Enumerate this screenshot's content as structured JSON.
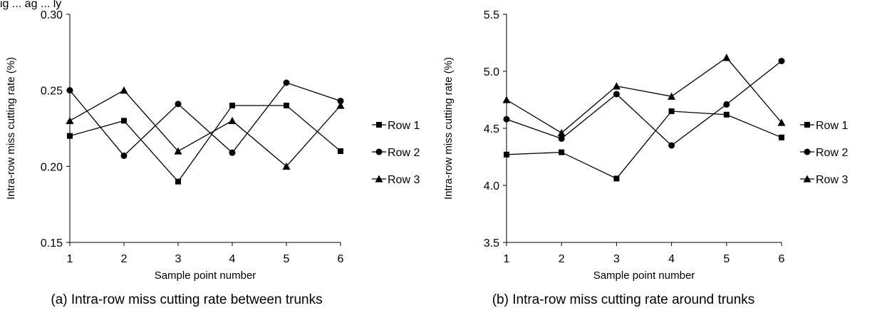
{
  "header_fragment": "ig  ... ag  ... ly",
  "chart_data": [
    {
      "type": "line",
      "caption": "(a) Intra-row miss cutting rate between trunks",
      "xlabel": "Sample point number",
      "ylabel": "Intra-row miss cutting rate (%)",
      "x": [
        1,
        2,
        3,
        4,
        5,
        6
      ],
      "xticks": [
        "1",
        "2",
        "3",
        "4",
        "5",
        "6"
      ],
      "ylim": [
        0.15,
        0.3
      ],
      "yticks": [
        "0.15",
        "0.20",
        "0.25",
        "0.30"
      ],
      "grid": false,
      "legend_position": "right",
      "series": [
        {
          "name": "Row 1",
          "marker": "square",
          "values": [
            0.22,
            0.23,
            0.19,
            0.24,
            0.24,
            0.21
          ]
        },
        {
          "name": "Row 2",
          "marker": "circle",
          "values": [
            0.25,
            0.207,
            0.241,
            0.209,
            0.255,
            0.243
          ]
        },
        {
          "name": "Row 3",
          "marker": "triangle",
          "values": [
            0.23,
            0.25,
            0.21,
            0.23,
            0.2,
            0.24
          ]
        }
      ]
    },
    {
      "type": "line",
      "caption": "(b) Intra-row miss cutting rate around trunks",
      "xlabel": "Sample point number",
      "ylabel": "Intra-row miss cutting rate (%)",
      "x": [
        1,
        2,
        3,
        4,
        5,
        6
      ],
      "xticks": [
        "1",
        "2",
        "3",
        "4",
        "5",
        "6"
      ],
      "ylim": [
        3.5,
        5.5
      ],
      "yticks": [
        "3.5",
        "4.0",
        "4.5",
        "5.0",
        "5.5"
      ],
      "grid": false,
      "legend_position": "right",
      "series": [
        {
          "name": "Row 1",
          "marker": "square",
          "values": [
            4.27,
            4.29,
            4.06,
            4.65,
            4.62,
            4.42
          ]
        },
        {
          "name": "Row 2",
          "marker": "circle",
          "values": [
            4.58,
            4.41,
            4.8,
            4.35,
            4.71,
            5.09
          ]
        },
        {
          "name": "Row 3",
          "marker": "triangle",
          "values": [
            4.75,
            4.46,
            4.87,
            4.78,
            5.12,
            4.55
          ]
        }
      ]
    }
  ]
}
